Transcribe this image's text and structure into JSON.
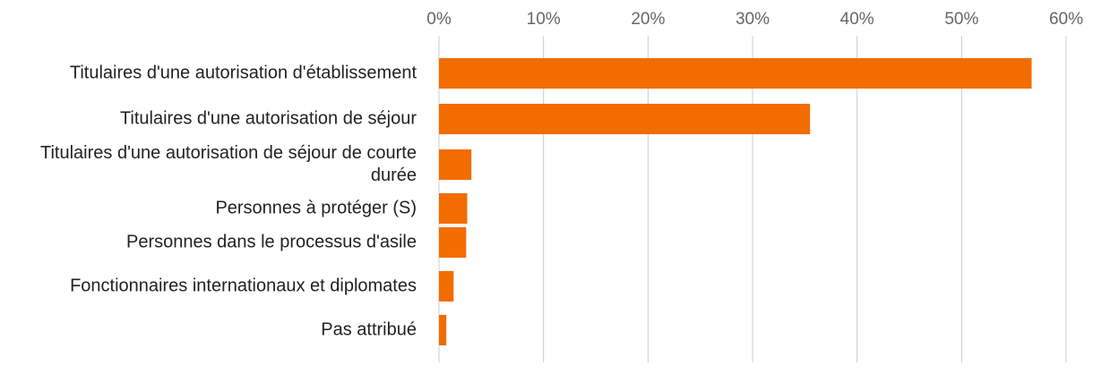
{
  "chart_data": {
    "type": "bar",
    "orientation": "horizontal",
    "categories": [
      "Titulaires d'une autorisation d'établissement",
      "Titulaires d'une autorisation de séjour",
      "Titulaires d'une autorisation de séjour de courte durée",
      "Personnes à protéger (S)",
      "Personnes dans le processus d'asile",
      "Fonctionnaires internationaux et diplomates",
      "Pas attribué"
    ],
    "values": [
      56.7,
      35.5,
      3.1,
      2.7,
      2.6,
      1.4,
      0.7
    ],
    "color": "#f36c00",
    "xlim": [
      0,
      60
    ],
    "xticks": [
      {
        "value": 0,
        "label": "0%"
      },
      {
        "value": 10,
        "label": "10%"
      },
      {
        "value": 20,
        "label": "20%"
      },
      {
        "value": 30,
        "label": "30%"
      },
      {
        "value": 40,
        "label": "40%"
      },
      {
        "value": 50,
        "label": "50%"
      },
      {
        "value": 60,
        "label": "60%"
      }
    ],
    "grid": true
  }
}
